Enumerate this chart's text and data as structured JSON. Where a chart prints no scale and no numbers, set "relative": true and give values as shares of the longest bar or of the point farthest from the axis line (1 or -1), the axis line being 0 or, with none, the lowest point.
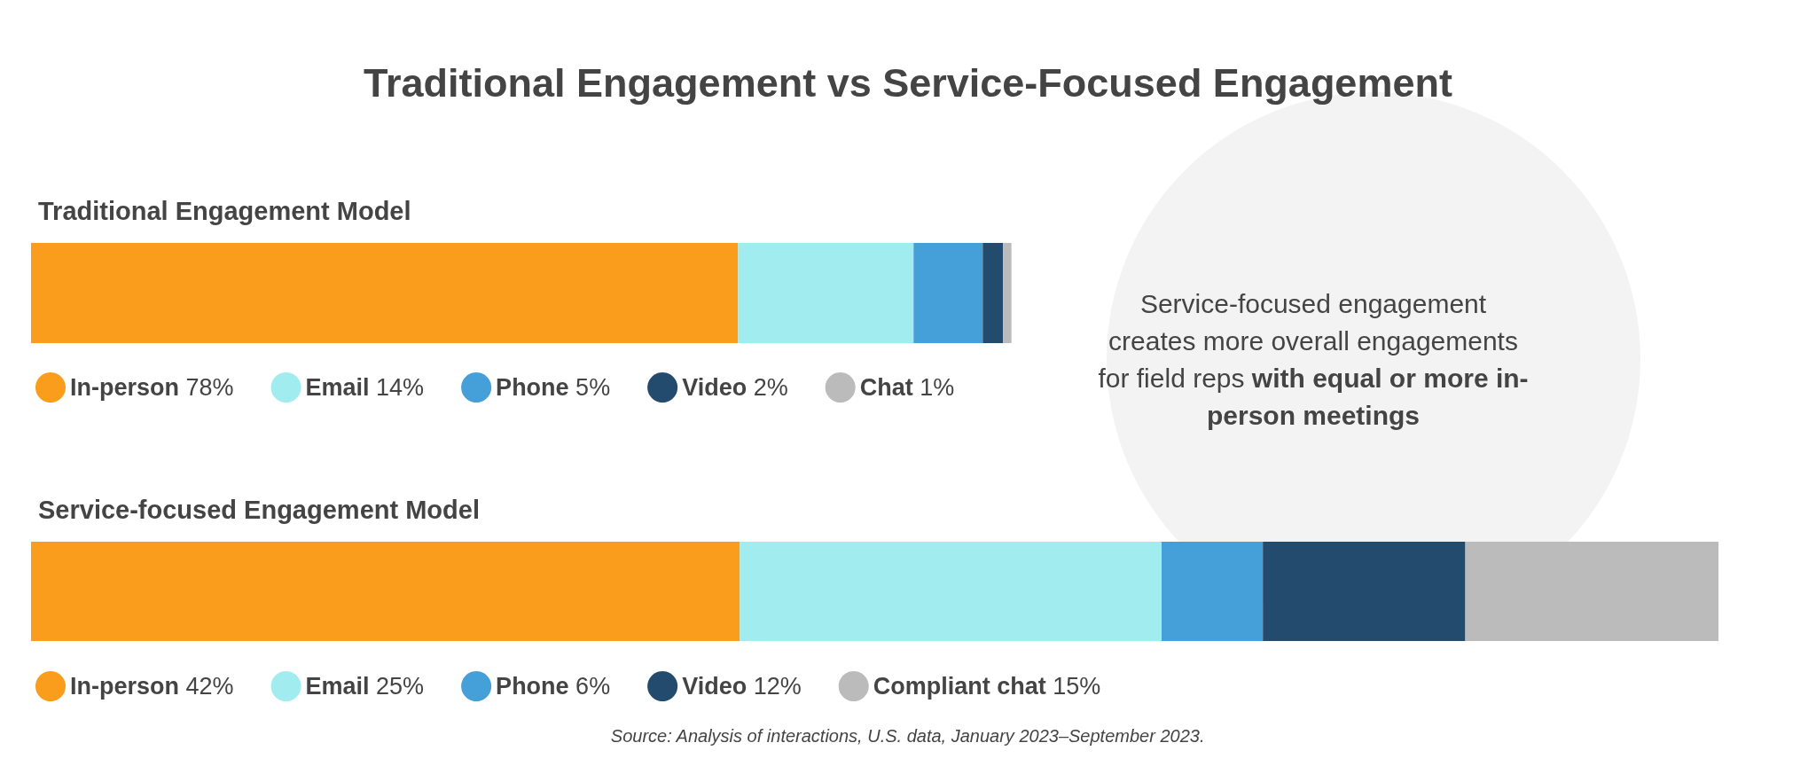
{
  "chart_data": {
    "type": "bar",
    "title": "Traditional Engagement vs Service-Focused Engagement",
    "orientation": "horizontal",
    "stacked": true,
    "relative": true,
    "legend": "bottom",
    "categories": [
      "Traditional Engagement Model",
      "Service-focused Engagement Model"
    ],
    "series": [
      {
        "name": "In-person 78%",
        "color": "#fa9d1c",
        "values": [
          0.419,
          null
        ]
      },
      {
        "name": "Email 14%",
        "color": "#a0ecee",
        "values": [
          0.104,
          null
        ]
      },
      {
        "name": "Phone 5%",
        "color": "#459fd8",
        "values": [
          0.041,
          null
        ]
      },
      {
        "name": "Video 2%",
        "color": "#234b6e",
        "values": [
          0.012,
          null
        ]
      },
      {
        "name": "Chat 1%",
        "color": "#bbbbbb",
        "values": [
          0.005,
          null
        ]
      },
      {
        "name": "In-person 42%",
        "color": "#fa9d1c",
        "values": [
          null,
          0.42
        ]
      },
      {
        "name": "Email 25%",
        "color": "#a0ecee",
        "values": [
          null,
          0.25
        ]
      },
      {
        "name": "Phone 6%",
        "color": "#459fd8",
        "values": [
          null,
          0.06
        ]
      },
      {
        "name": "Video 12%",
        "color": "#234b6e",
        "values": [
          null,
          0.12
        ]
      },
      {
        "name": "Compliant chat 15%",
        "color": "#bbbbbb",
        "values": [
          null,
          0.15
        ]
      }
    ],
    "annotations": [
      "Service-focused engagement creates more overall engagements for field reps",
      "with equal or more in-person meetings",
      "Source: Analysis of interactions, U.S. data, January 2023–September 2023."
    ]
  }
}
